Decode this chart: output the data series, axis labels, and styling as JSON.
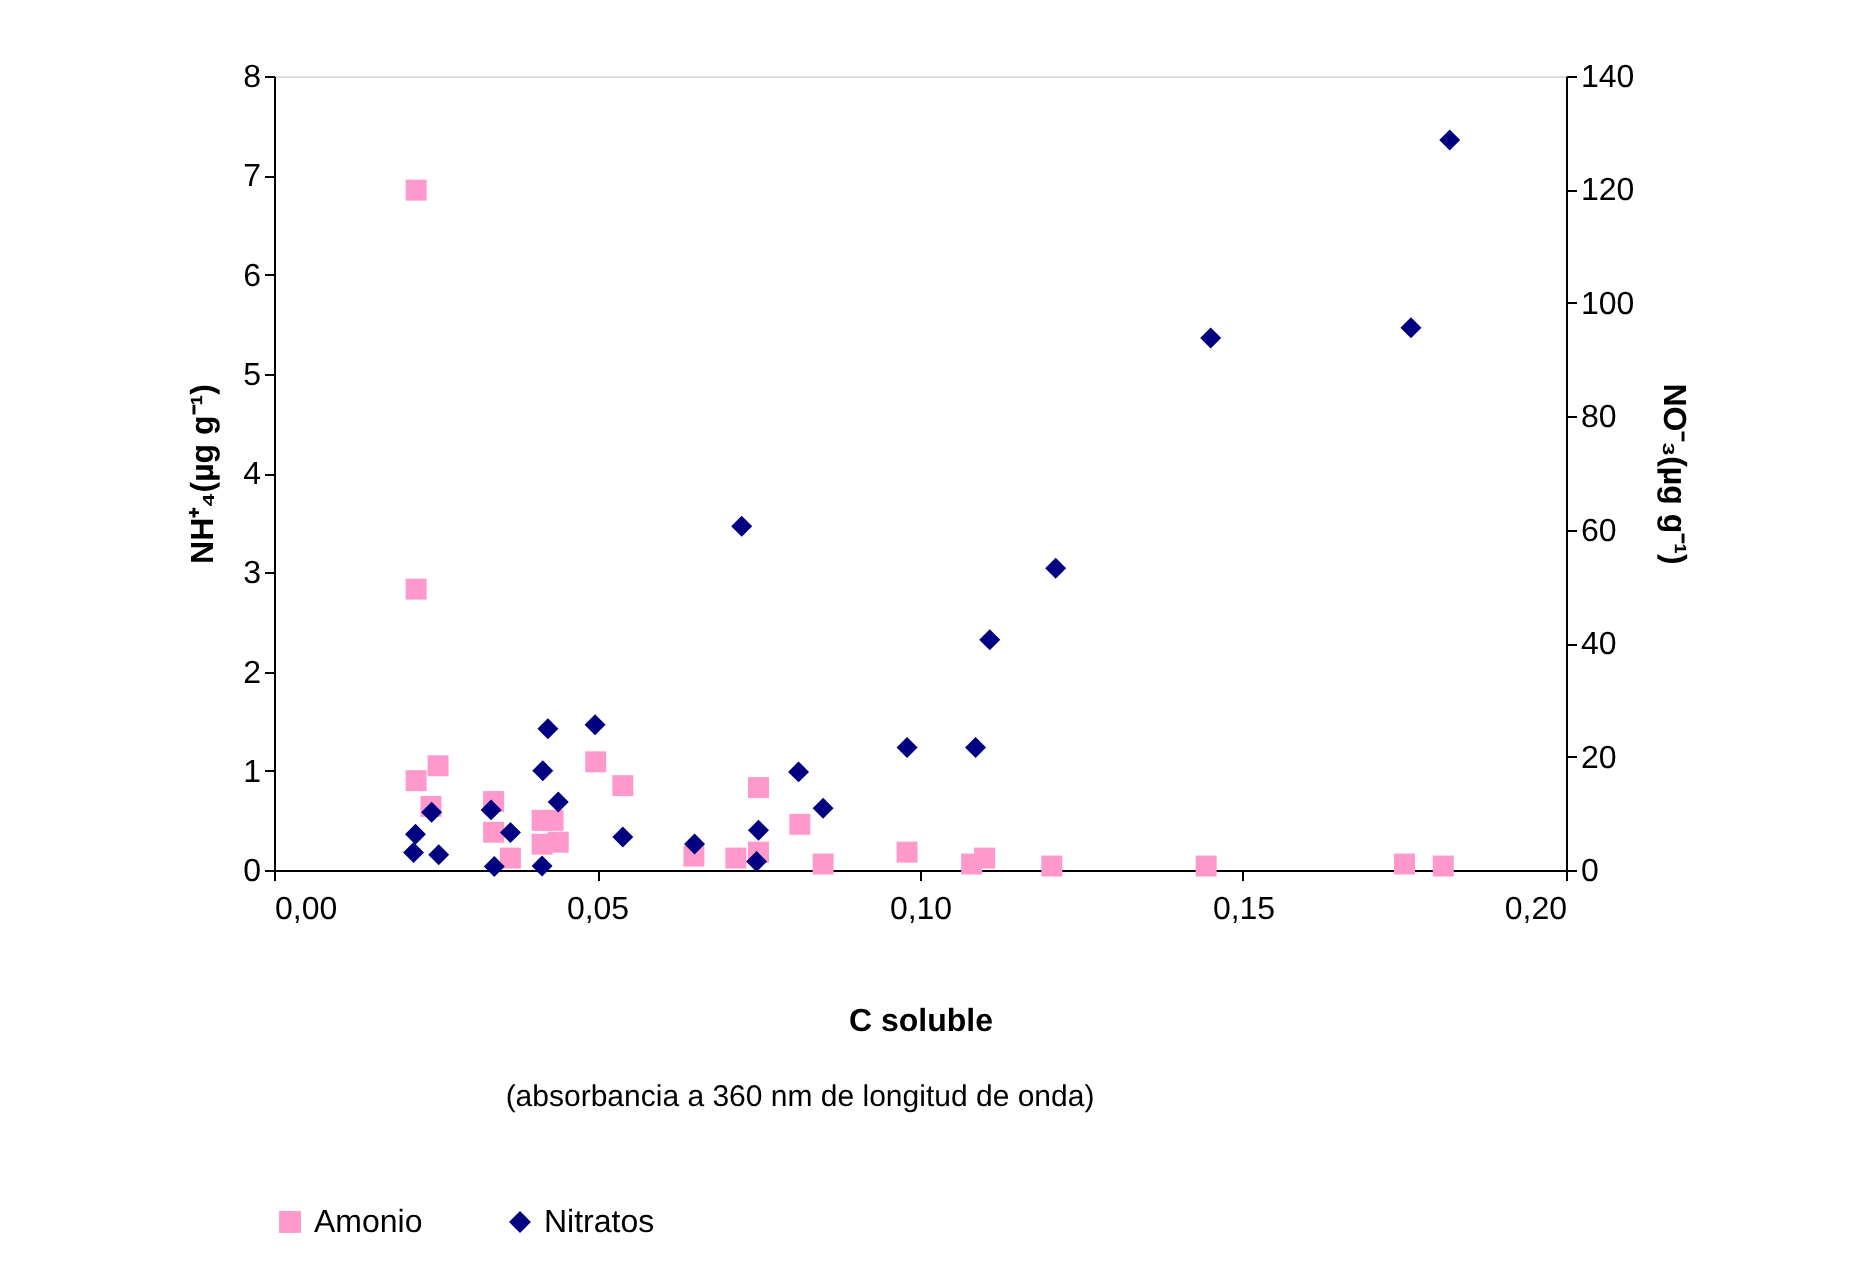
{
  "chart_data": {
    "type": "scatter",
    "xlabel": "C soluble",
    "ylabel": "NH⁺₄(µg g⁻¹)",
    "y2label": "NO⁻₃(µg g⁻¹)",
    "annotations": [
      "(absorbancia a 360 nm de longitud de onda)"
    ],
    "xlim": [
      0,
      0.2
    ],
    "xticks": [
      {
        "value": 0,
        "label": "0,00"
      },
      {
        "value": 0.05,
        "label": "0,05"
      },
      {
        "value": 0.1,
        "label": "0,10"
      },
      {
        "value": 0.15,
        "label": "0,15"
      },
      {
        "value": 0.2,
        "label": "0,20"
      }
    ],
    "ylim": [
      0,
      8
    ],
    "yticks": [
      0,
      1,
      2,
      3,
      4,
      5,
      6,
      7,
      8
    ],
    "y2lim": [
      0,
      140
    ],
    "y2ticks": [
      0,
      20,
      40,
      60,
      80,
      100,
      120,
      140
    ],
    "grid": false,
    "legend": "bottom",
    "series": [
      {
        "name": "Amonio",
        "color": "#ff99cc",
        "marker": "square",
        "x": [
          0.022,
          0.022,
          0.022,
          0.0254,
          0.0243,
          0.034,
          0.034,
          0.0366,
          0.0415,
          0.0432,
          0.0415,
          0.044,
          0.0498,
          0.054,
          0.065,
          0.0715,
          0.075,
          0.075,
          0.0814,
          0.085,
          0.098,
          0.11,
          0.108,
          0.1204,
          0.1443,
          0.175,
          0.181
        ],
        "values": [
          6.85,
          2.83,
          0.9,
          1.05,
          0.64,
          0.69,
          0.38,
          0.12,
          0.5,
          0.5,
          0.26,
          0.28,
          1.09,
          0.85,
          0.14,
          0.12,
          0.83,
          0.18,
          0.46,
          0.06,
          0.18,
          0.12,
          0.06,
          0.04,
          0.04,
          0.06,
          0.04
        ]
      },
      {
        "name": "Nitratos",
        "color": "#000080",
        "marker": "diamond",
        "axis": "y2",
        "x": [
          0.182,
          0.145,
          0.176,
          0.0724,
          0.121,
          0.1108,
          0.098,
          0.1086,
          0.0424,
          0.0497,
          0.0416,
          0.0812,
          0.0244,
          0.044,
          0.085,
          0.0336,
          0.0366,
          0.0219,
          0.0216,
          0.0255,
          0.054,
          0.0651,
          0.075,
          0.0747,
          0.0341,
          0.0415
        ],
        "values": [
          128.7,
          93.8,
          95.6,
          60.6,
          53.2,
          40.6,
          21.6,
          21.6,
          24.9,
          25.6,
          17.5,
          17.3,
          10.2,
          12,
          10.9,
          10.6,
          6.6,
          6.3,
          3.1,
          2.7,
          5.8,
          4.6,
          7.0,
          1.5,
          0.6,
          0.7
        ]
      }
    ]
  }
}
